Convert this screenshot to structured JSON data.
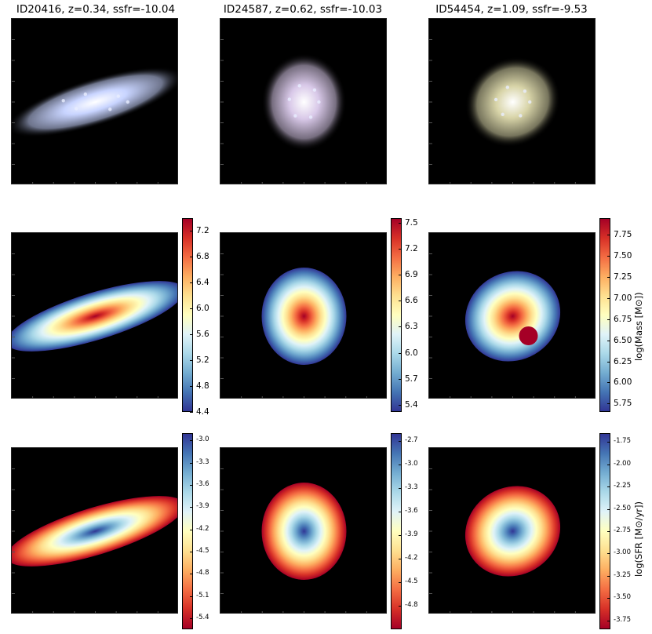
{
  "chart_data": {
    "type": "heatmap",
    "galaxies": [
      {
        "id": "ID20416",
        "title": "ID20416, z=0.34, ssfr=-10.04",
        "shape": "edge-on disk",
        "angle_deg": -17
      },
      {
        "id": "ID24587",
        "title": "ID24587, z=0.62, ssfr=-10.03",
        "shape": "face-on spiral",
        "angle_deg": 0
      },
      {
        "id": "ID54454",
        "title": "ID54454, z=1.09, ssfr=-9.53",
        "shape": "clumpy spiral",
        "angle_deg": -30
      }
    ],
    "rows": [
      {
        "name": "rgb",
        "label": ""
      },
      {
        "name": "mass",
        "label": "log(Mass [M⊙])",
        "colormap": "RdYlBu_r",
        "colorbars": [
          {
            "range": [
              4.4,
              7.4
            ],
            "ticks": [
              "4.4",
              "4.8",
              "5.2",
              "5.6",
              "6.0",
              "6.4",
              "6.8",
              "7.2"
            ],
            "tick_values": [
              4.4,
              4.8,
              5.2,
              5.6,
              6.0,
              6.4,
              6.8,
              7.2
            ]
          },
          {
            "range": [
              5.32,
              7.55
            ],
            "ticks": [
              "5.4",
              "5.7",
              "6.0",
              "6.3",
              "6.6",
              "6.9",
              "7.2",
              "7.5"
            ],
            "tick_values": [
              5.4,
              5.7,
              6.0,
              6.3,
              6.6,
              6.9,
              7.2,
              7.5
            ]
          },
          {
            "range": [
              5.65,
              7.95
            ],
            "ticks": [
              "5.75",
              "6.00",
              "6.25",
              "6.50",
              "6.75",
              "7.00",
              "7.25",
              "7.50",
              "7.75"
            ],
            "tick_values": [
              5.75,
              6.0,
              6.25,
              6.5,
              6.75,
              7.0,
              7.25,
              7.5,
              7.75
            ]
          }
        ]
      },
      {
        "name": "sfr",
        "label": "log(SFR [M⊙/yr])",
        "colormap": "RdYlBu",
        "colorbars": [
          {
            "range": [
              -5.55,
              -2.9
            ],
            "ticks": [
              "-3.0",
              "-3.3",
              "-3.6",
              "-3.9",
              "-4.2",
              "-4.5",
              "-4.8",
              "-5.1",
              "-5.4"
            ],
            "tick_values": [
              -3.0,
              -3.3,
              -3.6,
              -3.9,
              -4.2,
              -4.5,
              -4.8,
              -5.1,
              -5.4
            ]
          },
          {
            "range": [
              -5.1,
              -2.6
            ],
            "ticks": [
              "-2.7",
              "-3.0",
              "-3.3",
              "-3.6",
              "-3.9",
              "-4.2",
              "-4.5",
              "-4.8"
            ],
            "tick_values": [
              -2.7,
              -3.0,
              -3.3,
              -3.6,
              -3.9,
              -4.2,
              -4.5,
              -4.8
            ]
          },
          {
            "range": [
              -3.85,
              -1.65
            ],
            "ticks": [
              "-1.75",
              "-2.00",
              "-2.25",
              "-2.50",
              "-2.75",
              "-3.00",
              "-3.25",
              "-3.50",
              "-3.75"
            ],
            "tick_values": [
              -1.75,
              -2.0,
              -2.25,
              -2.5,
              -2.75,
              -3.0,
              -3.25,
              -3.5,
              -3.75
            ]
          }
        ]
      }
    ]
  },
  "colors": {
    "background_panel": "#000000",
    "RdYlBu_r": [
      "#313695",
      "#4575b4",
      "#74add1",
      "#abd9e9",
      "#e0f3f8",
      "#ffffbf",
      "#fee090",
      "#fdae61",
      "#f46d43",
      "#d73027",
      "#a50026"
    ],
    "rgb_galaxy_1": "#c8d4ff",
    "rgb_galaxy_2": "#d8c8e8",
    "rgb_galaxy_3": "#d8d4a8"
  }
}
